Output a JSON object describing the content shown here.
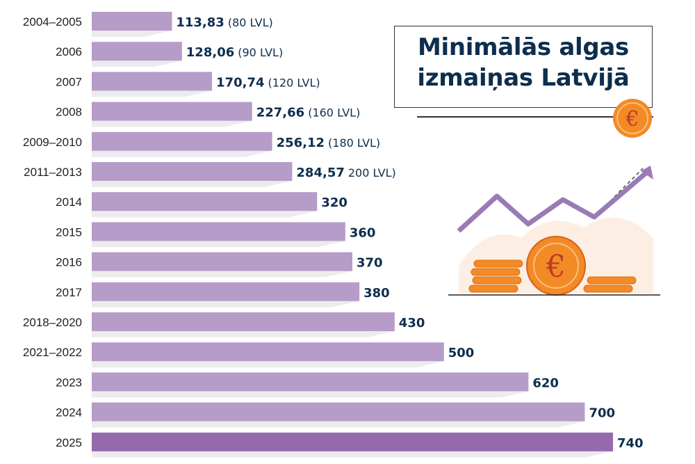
{
  "title": {
    "line1": "Minimālās algas",
    "line2": "izmaiņas Latvijā"
  },
  "icons": {
    "badge": "euro-coin-icon",
    "illustration": "rising-arrow-coins-icon"
  },
  "colors": {
    "bar": "#b69cc8",
    "bar_highlight": "#9469ad",
    "value_text": "#0d2e4d",
    "coin": "#f28a26"
  },
  "chart_data": {
    "type": "bar",
    "orientation": "horizontal",
    "categories": [
      "2004–2005",
      "2006",
      "2007",
      "2008",
      "2009–2010",
      "2011–2013",
      "2014",
      "2015",
      "2016",
      "2017",
      "2018–2020",
      "2021–2022",
      "2023",
      "2024",
      "2025"
    ],
    "values": [
      113.83,
      128.06,
      170.74,
      227.66,
      256.12,
      284.57,
      320,
      360,
      370,
      380,
      430,
      500,
      620,
      700,
      740
    ],
    "value_labels": [
      "113,83",
      "128,06",
      "170,74",
      "227,66",
      "256,12",
      "284,57",
      "320",
      "360",
      "370",
      "380",
      "430",
      "500",
      "620",
      "700",
      "740"
    ],
    "secondary_labels": [
      "(80 LVL)",
      "(90 LVL)",
      "(120 LVL)",
      "(160 LVL)",
      "(180 LVL)",
      "200 LVL)",
      "",
      "",
      "",
      "",
      "",
      "",
      "",
      "",
      ""
    ],
    "highlight_index": 14,
    "xlim": [
      0,
      740
    ],
    "grid": false,
    "legend": "none"
  }
}
